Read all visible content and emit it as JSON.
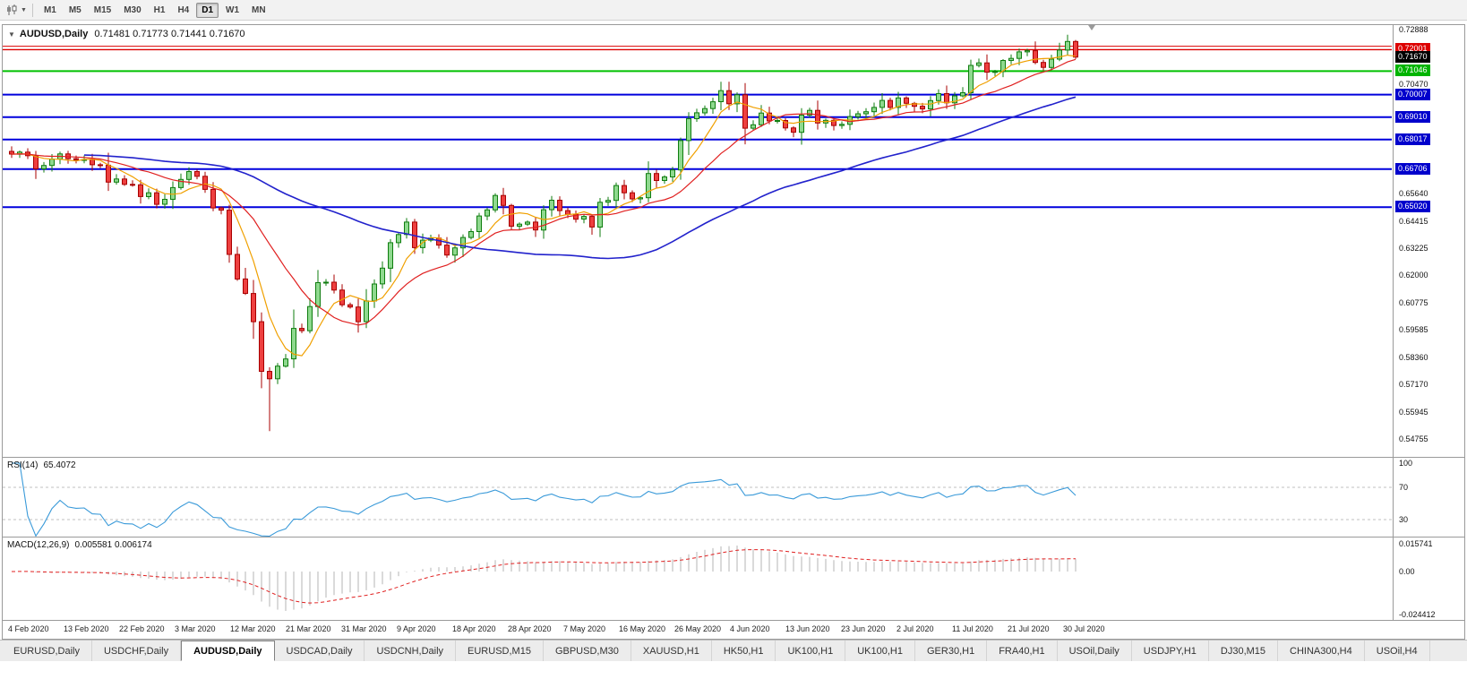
{
  "toolbar": {
    "timeframes": [
      {
        "label": "M1",
        "active": false
      },
      {
        "label": "M5",
        "active": false
      },
      {
        "label": "M15",
        "active": false
      },
      {
        "label": "M30",
        "active": false
      },
      {
        "label": "H1",
        "active": false
      },
      {
        "label": "H4",
        "active": false
      },
      {
        "label": "D1",
        "active": true
      },
      {
        "label": "W1",
        "active": false
      },
      {
        "label": "MN",
        "active": false
      }
    ]
  },
  "chart": {
    "symbol": "AUDUSD,Daily",
    "ohlc": "0.71481 0.71773 0.71441 0.71670"
  },
  "chart_data": {
    "type": "candlestick",
    "symbol": "AUDUSD",
    "timeframe": "Daily",
    "current_bar": {
      "open": 0.71481,
      "high": 0.71773,
      "low": 0.71441,
      "close": 0.7167
    },
    "x_labels": [
      "4 Feb 2020",
      "13 Feb 2020",
      "22 Feb 2020",
      "3 Mar 2020",
      "12 Mar 2020",
      "21 Mar 2020",
      "31 Mar 2020",
      "9 Apr 2020",
      "18 Apr 2020",
      "28 Apr 2020",
      "7 May 2020",
      "16 May 2020",
      "26 May 2020",
      "4 Jun 2020",
      "13 Jun 2020",
      "23 Jun 2020",
      "2 Jul 2020",
      "11 Jul 2020",
      "21 Jul 2020",
      "30 Jul 2020"
    ],
    "closes": [
      0.6737,
      0.6746,
      0.673,
      0.6672,
      0.6687,
      0.6715,
      0.6738,
      0.6717,
      0.6712,
      0.6713,
      0.669,
      0.6688,
      0.6613,
      0.6627,
      0.6603,
      0.6601,
      0.6549,
      0.6566,
      0.6515,
      0.6537,
      0.6589,
      0.6625,
      0.666,
      0.6639,
      0.6581,
      0.6499,
      0.6489,
      0.6293,
      0.6184,
      0.612,
      0.5995,
      0.5775,
      0.5742,
      0.5798,
      0.583,
      0.5965,
      0.5955,
      0.6062,
      0.6168,
      0.617,
      0.6135,
      0.607,
      0.606,
      0.5995,
      0.6087,
      0.6162,
      0.6232,
      0.6345,
      0.6381,
      0.6436,
      0.6323,
      0.6356,
      0.6365,
      0.6334,
      0.629,
      0.6322,
      0.6368,
      0.6394,
      0.6463,
      0.649,
      0.6554,
      0.651,
      0.6418,
      0.6427,
      0.6436,
      0.6401,
      0.6491,
      0.6533,
      0.6487,
      0.647,
      0.6449,
      0.6461,
      0.6414,
      0.6524,
      0.6532,
      0.6598,
      0.6566,
      0.6539,
      0.6544,
      0.6651,
      0.662,
      0.6636,
      0.6667,
      0.6797,
      0.6894,
      0.692,
      0.6939,
      0.6969,
      0.7018,
      0.696,
      0.7,
      0.6852,
      0.6867,
      0.6919,
      0.6884,
      0.6886,
      0.6853,
      0.6834,
      0.691,
      0.6931,
      0.6875,
      0.6887,
      0.6864,
      0.6869,
      0.6903,
      0.6916,
      0.6925,
      0.6944,
      0.6975,
      0.6944,
      0.6986,
      0.6962,
      0.6949,
      0.6937,
      0.6974,
      0.7005,
      0.6964,
      0.6995,
      0.7009,
      0.713,
      0.7141,
      0.71,
      0.7103,
      0.7152,
      0.7161,
      0.719,
      0.7195,
      0.7143,
      0.7121,
      0.7158,
      0.7198,
      0.7236,
      0.7167
    ],
    "low_overrides": [
      {
        "index": 32,
        "low": 0.551
      },
      {
        "index": 31,
        "low": 0.57
      }
    ],
    "y_ticks": [
      {
        "label": "0.72888",
        "price": 0.72888
      },
      {
        "label": "0.70470",
        "price": 0.7047
      },
      {
        "label": "0.65640",
        "price": 0.6564
      },
      {
        "label": "0.64415",
        "price": 0.64415
      },
      {
        "label": "0.63225",
        "price": 0.63225
      },
      {
        "label": "0.62000",
        "price": 0.62
      },
      {
        "label": "0.60775",
        "price": 0.60775
      },
      {
        "label": "0.59585",
        "price": 0.59585
      },
      {
        "label": "0.58360",
        "price": 0.5836
      },
      {
        "label": "0.57170",
        "price": 0.5717
      },
      {
        "label": "0.55945",
        "price": 0.55945
      },
      {
        "label": "0.54755",
        "price": 0.54755
      }
    ],
    "price_tags": [
      {
        "label": "0.72001",
        "price": 0.72001,
        "bg": "#dd0000"
      },
      {
        "label": "0.71670",
        "price": 0.7167,
        "bg": "#000000"
      },
      {
        "label": "0.71046",
        "price": 0.71046,
        "bg": "#00b400"
      },
      {
        "label": "0.70007",
        "price": 0.70007,
        "bg": "#0000cc"
      },
      {
        "label": "0.69010",
        "price": 0.6901,
        "bg": "#0000cc"
      },
      {
        "label": "0.68017",
        "price": 0.68017,
        "bg": "#0000cc"
      },
      {
        "label": "0.66706",
        "price": 0.66706,
        "bg": "#0000cc"
      },
      {
        "label": "0.65020",
        "price": 0.6502,
        "bg": "#0000cc"
      }
    ],
    "levels": [
      {
        "price": 0.7215,
        "color": "#dd0000",
        "width": 1
      },
      {
        "price": 0.72001,
        "color": "#dd0000",
        "width": 1.4
      },
      {
        "price": 0.71046,
        "color": "#00c000",
        "width": 2
      },
      {
        "price": 0.70007,
        "color": "#0000dd",
        "width": 2
      },
      {
        "price": 0.6901,
        "color": "#0000dd",
        "width": 2
      },
      {
        "price": 0.68017,
        "color": "#0000dd",
        "width": 2
      },
      {
        "price": 0.66706,
        "color": "#0000dd",
        "width": 2
      },
      {
        "price": 0.6502,
        "color": "#0000dd",
        "width": 2
      }
    ],
    "moving_averages": [
      {
        "period": 6,
        "type": "sma",
        "color": "#f0a000"
      },
      {
        "period": 14,
        "type": "sma",
        "color": "#e02020"
      },
      {
        "period": 50,
        "type": "sma",
        "color": "#2222cc"
      }
    ],
    "candle_colors": {
      "up_fill": "#8fd98f",
      "up_stroke": "#0f7d0f",
      "down_fill": "#ee4040",
      "down_stroke": "#a80000"
    },
    "rsi": {
      "label": "RSI(14)",
      "value": "65.4072",
      "period": 14,
      "color": "#3a9ad9",
      "guide_levels": [
        70,
        30
      ],
      "ticks": [
        {
          "label": "100",
          "v": 100
        },
        {
          "label": "70",
          "v": 70
        },
        {
          "label": "30",
          "v": 30
        }
      ]
    },
    "macd": {
      "label": "MACD(12,26,9)",
      "value": "0.005581 0.006174",
      "fast": 12,
      "slow": 26,
      "signal": 9,
      "hist_color": "#b4b4b4",
      "signal_color": "#e02020",
      "ticks": [
        {
          "label": "0.015741",
          "v": 0.015741
        },
        {
          "label": "0.00",
          "v": 0
        },
        {
          "label": "-0.024412",
          "v": -0.024412
        }
      ]
    }
  },
  "tabs": {
    "active_index": 2,
    "items": [
      "EURUSD,Daily",
      "USDCHF,Daily",
      "AUDUSD,Daily",
      "USDCAD,Daily",
      "USDCNH,Daily",
      "EURUSD,M15",
      "GBPUSD,M30",
      "XAUUSD,H1",
      "HK50,H1",
      "UK100,H1",
      "UK100,H1",
      "GER30,H1",
      "FRA40,H1",
      "USOil,Daily",
      "USDJPY,H1",
      "DJ30,M15",
      "CHINA300,H4",
      "USOil,H4"
    ]
  }
}
